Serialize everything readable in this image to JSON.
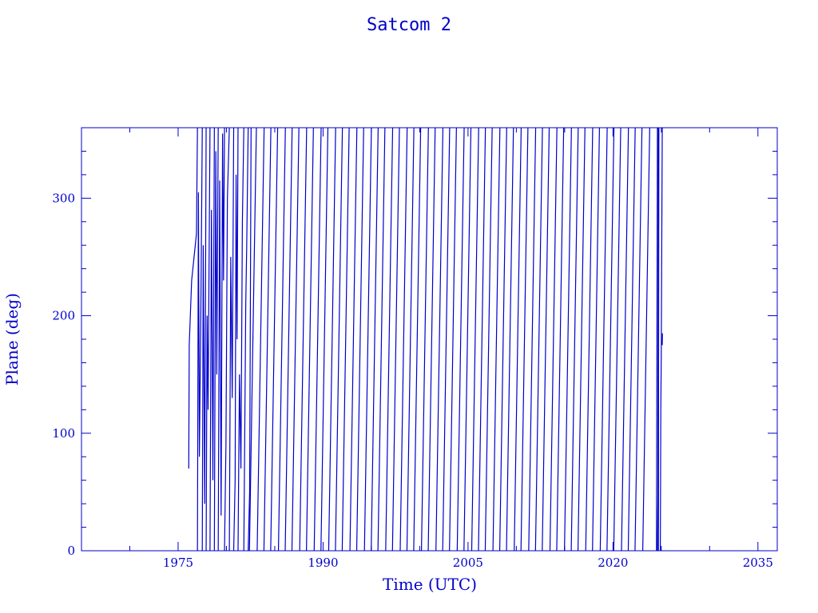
{
  "chart_data": {
    "type": "line",
    "title": "Satcom 2",
    "xlabel": "Time (UTC)",
    "ylabel": "Plane (deg)",
    "xlim": [
      1965,
      2037
    ],
    "ylim": [
      0,
      360
    ],
    "x_ticks": [
      1975,
      1990,
      2005,
      2020,
      2035
    ],
    "y_ticks": [
      0,
      100,
      200,
      300
    ],
    "x_minor_step": 5,
    "y_minor_step": 20,
    "grid": false,
    "legend": "none",
    "color": "#0000cc",
    "series": [
      {
        "early_segments": [
          [
            [
              1976.1,
              70
            ],
            [
              1976.15,
              175
            ],
            [
              1976.4,
              230
            ],
            [
              1976.9,
              270
            ],
            [
              1977.0,
              360
            ]
          ],
          [
            [
              1977.0,
              0
            ],
            [
              1977.1,
              305
            ],
            [
              1977.2,
              80
            ],
            [
              1977.35,
              200
            ],
            [
              1977.5,
              360
            ]
          ],
          [
            [
              1977.5,
              0
            ],
            [
              1977.6,
              260
            ],
            [
              1977.75,
              40
            ],
            [
              1977.9,
              360
            ]
          ],
          [
            [
              1977.9,
              0
            ],
            [
              1978.0,
              200
            ],
            [
              1978.1,
              120
            ],
            [
              1978.3,
              360
            ]
          ],
          [
            [
              1978.3,
              0
            ],
            [
              1978.45,
              290
            ],
            [
              1978.6,
              60
            ],
            [
              1978.75,
              360
            ]
          ],
          [
            [
              1978.75,
              0
            ],
            [
              1978.9,
              340
            ],
            [
              1979.0,
              150
            ],
            [
              1979.15,
              360
            ]
          ],
          [
            [
              1979.15,
              0
            ],
            [
              1979.3,
              315
            ],
            [
              1979.45,
              30
            ],
            [
              1979.6,
              355
            ],
            [
              1979.7,
              230
            ],
            [
              1979.8,
              360
            ]
          ],
          [
            [
              1979.8,
              0
            ],
            [
              1979.95,
              90
            ],
            [
              1980.1,
              300
            ],
            [
              1980.3,
              360
            ]
          ],
          [
            [
              1980.3,
              0
            ],
            [
              1980.45,
              250
            ],
            [
              1980.6,
              130
            ],
            [
              1980.75,
              360
            ]
          ],
          [
            [
              1980.75,
              0
            ],
            [
              1980.9,
              60
            ],
            [
              1981.0,
              320
            ],
            [
              1981.1,
              180
            ],
            [
              1981.2,
              360
            ]
          ],
          [
            [
              1981.2,
              0
            ],
            [
              1981.35,
              150
            ],
            [
              1981.5,
              70
            ],
            [
              1981.65,
              280
            ],
            [
              1981.8,
              360
            ]
          ],
          [
            [
              1981.8,
              0
            ],
            [
              1982.0,
              210
            ],
            [
              1982.1,
              260
            ],
            [
              1982.25,
              360
            ]
          ],
          [
            [
              1982.25,
              0
            ],
            [
              1982.4,
              50
            ],
            [
              1982.55,
              360
            ]
          ]
        ],
        "regular_wrap_years": [
          1983.1,
          1983.9,
          1984.6,
          1985.3,
          1986.1,
          1986.8,
          1987.5,
          1988.3,
          1989.0,
          1989.8,
          1990.5,
          1991.3,
          1992.0,
          1992.7,
          1993.5,
          1994.2,
          1995.0,
          1995.7,
          1996.4,
          1997.2,
          1997.9,
          1998.7,
          1999.4,
          2000.1,
          2000.9,
          2001.6,
          2002.4,
          2003.1,
          2003.8,
          2004.6,
          2005.3,
          2006.1,
          2006.8,
          2007.5,
          2008.3,
          2009.0,
          2009.7,
          2010.5,
          2011.2,
          2012.0,
          2012.7,
          2013.4,
          2014.2,
          2014.9,
          2015.7,
          2016.4,
          2017.1,
          2017.9,
          2018.6,
          2019.4,
          2020.1,
          2020.8,
          2021.6,
          2022.3,
          2023.0,
          2023.8
        ],
        "regular_period_years": 0.72,
        "late_segments": [
          [
            [
              2024.5,
              0
            ],
            [
              2024.6,
              360
            ]
          ],
          [
            [
              2024.6,
              0
            ],
            [
              2024.65,
              45
            ],
            [
              2024.7,
              360
            ]
          ],
          [
            [
              2024.7,
              0
            ],
            [
              2024.75,
              360
            ]
          ],
          [
            [
              2024.9,
              0
            ],
            [
              2024.95,
              120
            ],
            [
              2025.0,
              170
            ],
            [
              2025.1,
              360
            ]
          ],
          [
            [
              2025.1,
              175
            ],
            [
              2025.12,
              185
            ]
          ]
        ]
      }
    ]
  }
}
